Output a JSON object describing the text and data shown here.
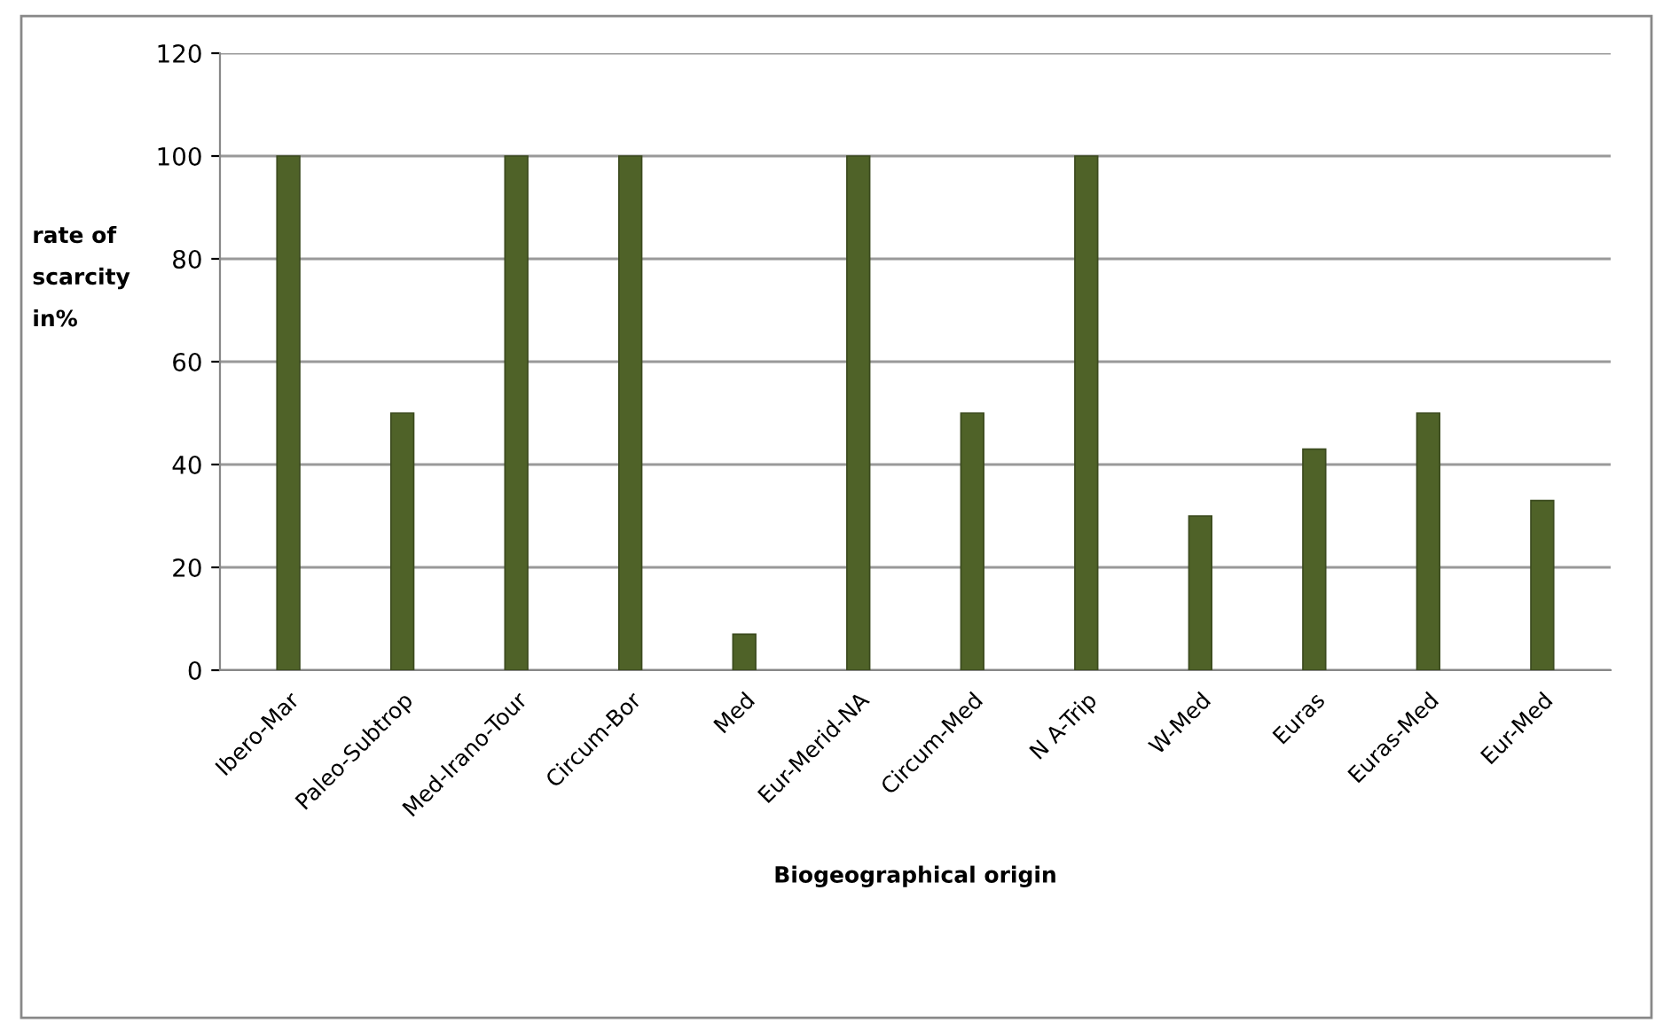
{
  "chart_data": {
    "type": "bar",
    "xlabel": "Biogeographical origin",
    "ylabel": "rate of\nscarcity\nin%",
    "categories": [
      "Ibero-Mar",
      "Paleo-Subtrop",
      "Med-Irano-Tour",
      "Circum-Bor",
      "Med",
      "Eur-Merid-NA",
      "Circum-Med",
      "N A-Trip",
      "W-Med",
      "Euras",
      "Euras-Med",
      "Eur-Med"
    ],
    "values": [
      100,
      50,
      100,
      100,
      7,
      100,
      50,
      100,
      30,
      43,
      50,
      33
    ],
    "color": "#4f6228",
    "ylim": [
      0,
      120
    ],
    "yticks": [
      0,
      20,
      40,
      60,
      80,
      100,
      120
    ],
    "grid": "y"
  }
}
